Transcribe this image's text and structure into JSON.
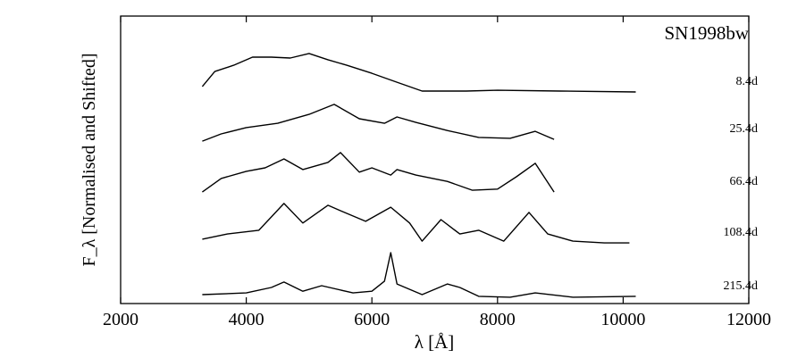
{
  "chart_data": {
    "type": "line",
    "annotation": "SN1998bw",
    "xlabel": "λ [Å]",
    "ylabel": "F_λ [Normalised and Shifted]",
    "xlim": [
      2000,
      12000
    ],
    "xticks": [
      2000,
      4000,
      6000,
      8000,
      10000,
      12000
    ],
    "ylim": [
      0,
      10
    ],
    "series": [
      {
        "name": "8.4d",
        "color": "#000000",
        "x": [
          3300,
          3500,
          3800,
          4100,
          4400,
          4700,
          5000,
          5300,
          5600,
          6000,
          6400,
          6800,
          7500,
          8000,
          9000,
          10200
        ],
        "values": [
          7.55,
          8.07,
          8.29,
          8.57,
          8.57,
          8.54,
          8.7,
          8.48,
          8.29,
          8.01,
          7.7,
          7.39,
          7.39,
          7.42,
          7.39,
          7.36
        ]
      },
      {
        "name": "25.4d",
        "color": "#000000",
        "x": [
          3300,
          3600,
          4000,
          4500,
          5000,
          5400,
          5800,
          6200,
          6400,
          6700,
          7200,
          7700,
          8200,
          8600,
          8900
        ],
        "values": [
          5.65,
          5.9,
          6.12,
          6.27,
          6.58,
          6.93,
          6.43,
          6.27,
          6.49,
          6.3,
          6.02,
          5.78,
          5.75,
          5.99,
          5.71
        ]
      },
      {
        "name": "66.4d",
        "color": "#000000",
        "x": [
          3300,
          3600,
          4000,
          4300,
          4600,
          4900,
          5300,
          5500,
          5800,
          6000,
          6300,
          6400,
          6700,
          7200,
          7600,
          8000,
          8300,
          8600,
          8900
        ],
        "values": [
          3.88,
          4.35,
          4.6,
          4.72,
          5.03,
          4.66,
          4.91,
          5.25,
          4.57,
          4.72,
          4.47,
          4.66,
          4.47,
          4.25,
          3.94,
          3.98,
          4.41,
          4.88,
          3.88
        ]
      },
      {
        "name": "108.4d",
        "color": "#000000",
        "x": [
          3300,
          3700,
          4200,
          4600,
          4900,
          5300,
          5500,
          5900,
          6300,
          6600,
          6800,
          7100,
          7400,
          7700,
          8100,
          8500,
          8800,
          9200,
          9700,
          10100
        ],
        "values": [
          2.24,
          2.42,
          2.55,
          3.48,
          2.8,
          3.42,
          3.23,
          2.86,
          3.35,
          2.8,
          2.17,
          2.92,
          2.42,
          2.55,
          2.17,
          3.17,
          2.42,
          2.17,
          2.11,
          2.11
        ]
      },
      {
        "name": "215.4d",
        "color": "#000000",
        "x": [
          3300,
          4000,
          4400,
          4600,
          4900,
          5200,
          5700,
          6000,
          6200,
          6300,
          6400,
          6800,
          7200,
          7400,
          7700,
          8200,
          8600,
          9200,
          10200
        ],
        "values": [
          0.31,
          0.37,
          0.56,
          0.75,
          0.43,
          0.62,
          0.37,
          0.43,
          0.78,
          1.77,
          0.68,
          0.31,
          0.68,
          0.56,
          0.25,
          0.22,
          0.37,
          0.22,
          0.25
        ]
      }
    ]
  }
}
